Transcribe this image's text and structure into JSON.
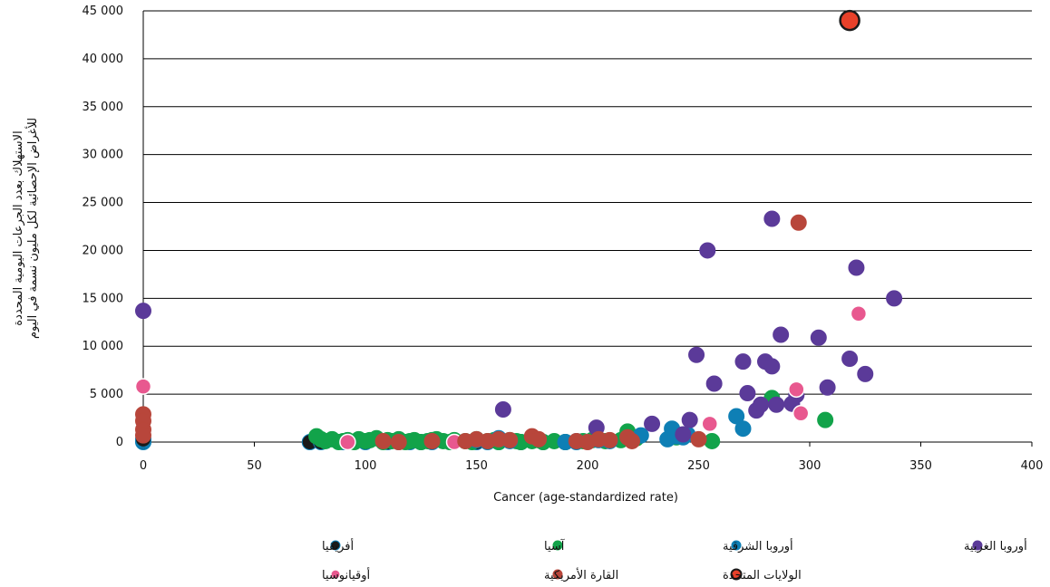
{
  "chart_data": {
    "type": "scatter",
    "xlabel": "Cancer (age-standardized rate)",
    "ylabel_lines": [
      "الاستهلاك بعدد الجرعات اليومية المحددة",
      "للأغراض الإحصائية لكل مليون نسمة في اليوم"
    ],
    "xlim": [
      0,
      400
    ],
    "ylim": [
      0,
      45000
    ],
    "x_ticks": [
      0,
      50,
      100,
      150,
      200,
      250,
      300,
      350,
      400
    ],
    "y_ticks": [
      0,
      5000,
      10000,
      15000,
      20000,
      25000,
      30000,
      35000,
      40000,
      45000
    ],
    "y_tick_labels": [
      "0",
      "5 000",
      "10 000",
      "15 000",
      "20 000",
      "25 000",
      "30 000",
      "35 000",
      "40 000",
      "45 000"
    ],
    "grid": "horizontal",
    "legend_position": "bottom",
    "series": [
      {
        "name": "أفريقيا",
        "color": "#1a1a1a",
        "edge": "#0e7fb5",
        "points": [
          [
            0,
            0
          ],
          [
            0,
            100
          ],
          [
            0,
            200
          ],
          [
            0,
            300
          ],
          [
            75,
            0
          ],
          [
            80,
            0
          ],
          [
            90,
            0
          ],
          [
            100,
            0
          ],
          [
            110,
            0
          ],
          [
            115,
            0
          ],
          [
            120,
            0
          ],
          [
            125,
            0
          ],
          [
            130,
            0
          ],
          [
            140,
            0
          ],
          [
            150,
            0
          ],
          [
            155,
            0
          ],
          [
            160,
            0
          ],
          [
            170,
            0
          ],
          [
            180,
            0
          ],
          [
            190,
            0
          ],
          [
            195,
            0
          ]
        ]
      },
      {
        "name": "آسيا",
        "color": "#12a34a",
        "edge": "#12a34a",
        "points": [
          [
            78,
            600
          ],
          [
            80,
            300
          ],
          [
            82,
            100
          ],
          [
            85,
            300
          ],
          [
            88,
            0
          ],
          [
            90,
            100
          ],
          [
            92,
            200
          ],
          [
            95,
            0
          ],
          [
            97,
            300
          ],
          [
            100,
            100
          ],
          [
            102,
            200
          ],
          [
            105,
            400
          ],
          [
            108,
            0
          ],
          [
            110,
            200
          ],
          [
            112,
            100
          ],
          [
            115,
            300
          ],
          [
            118,
            0
          ],
          [
            120,
            100
          ],
          [
            122,
            200
          ],
          [
            125,
            0
          ],
          [
            128,
            100
          ],
          [
            130,
            200
          ],
          [
            132,
            300
          ],
          [
            135,
            100
          ],
          [
            138,
            0
          ],
          [
            140,
            200
          ],
          [
            145,
            100
          ],
          [
            148,
            0
          ],
          [
            150,
            300
          ],
          [
            155,
            100
          ],
          [
            158,
            200
          ],
          [
            160,
            0
          ],
          [
            165,
            200
          ],
          [
            168,
            100
          ],
          [
            170,
            0
          ],
          [
            175,
            100
          ],
          [
            178,
            200
          ],
          [
            180,
            0
          ],
          [
            185,
            100
          ],
          [
            190,
            0
          ],
          [
            198,
            100
          ],
          [
            202,
            200
          ],
          [
            208,
            100
          ],
          [
            215,
            200
          ],
          [
            218,
            1100
          ],
          [
            222,
            400
          ],
          [
            240,
            500
          ],
          [
            256,
            100
          ],
          [
            283,
            4600
          ],
          [
            307,
            2300
          ]
        ]
      },
      {
        "name": "أوروبا الشرقية",
        "color": "#0e7fb5",
        "edge": "#0e7fb5",
        "points": [
          [
            150,
            200
          ],
          [
            160,
            400
          ],
          [
            165,
            100
          ],
          [
            190,
            0
          ],
          [
            195,
            100
          ],
          [
            205,
            200
          ],
          [
            210,
            100
          ],
          [
            224,
            700
          ],
          [
            236,
            300
          ],
          [
            238,
            1400
          ],
          [
            240,
            600
          ],
          [
            243,
            500
          ],
          [
            245,
            800
          ],
          [
            267,
            2700
          ],
          [
            270,
            1400
          ]
        ]
      },
      {
        "name": "أوروبا الغربية",
        "color": "#5b3a99",
        "edge": "#5b3a99",
        "points": [
          [
            0,
            13700
          ],
          [
            162,
            3400
          ],
          [
            204,
            1500
          ],
          [
            229,
            1900
          ],
          [
            243,
            800
          ],
          [
            246,
            2300
          ],
          [
            249,
            9100
          ],
          [
            254,
            20000
          ],
          [
            257,
            6100
          ],
          [
            270,
            8400
          ],
          [
            272,
            5100
          ],
          [
            276,
            3300
          ],
          [
            278,
            3900
          ],
          [
            280,
            8400
          ],
          [
            283,
            23300
          ],
          [
            283,
            7900
          ],
          [
            285,
            3900
          ],
          [
            287,
            11200
          ],
          [
            292,
            4000
          ],
          [
            294,
            4900
          ],
          [
            304,
            10900
          ],
          [
            308,
            5700
          ],
          [
            318,
            8700
          ],
          [
            321,
            18200
          ],
          [
            325,
            7100
          ],
          [
            338,
            15000
          ]
        ]
      },
      {
        "name": "أوقيانوسيا",
        "color": "#e8588f",
        "edge": "#ffffff",
        "points": [
          [
            0,
            5800
          ],
          [
            92,
            0
          ],
          [
            140,
            0
          ],
          [
            255,
            1900
          ],
          [
            294,
            5500
          ],
          [
            296,
            3000
          ],
          [
            322,
            13400
          ]
        ]
      },
      {
        "name": "القارة الأمريكية",
        "color": "#b8463b",
        "edge": "#b8463b",
        "points": [
          [
            0,
            2900
          ],
          [
            0,
            2200
          ],
          [
            0,
            1300
          ],
          [
            0,
            700
          ],
          [
            108,
            100
          ],
          [
            115,
            0
          ],
          [
            130,
            100
          ],
          [
            145,
            100
          ],
          [
            150,
            300
          ],
          [
            155,
            100
          ],
          [
            160,
            300
          ],
          [
            165,
            200
          ],
          [
            175,
            600
          ],
          [
            178,
            300
          ],
          [
            195,
            100
          ],
          [
            200,
            0
          ],
          [
            205,
            300
          ],
          [
            210,
            200
          ],
          [
            218,
            500
          ],
          [
            220,
            100
          ],
          [
            250,
            300
          ],
          [
            295,
            22900
          ]
        ]
      },
      {
        "name": "الولايات المتحدة",
        "color": "#e8412a",
        "edge": "#1a1a1a",
        "highlight": true,
        "points": [
          [
            318,
            44000
          ]
        ]
      }
    ]
  },
  "legend": {
    "items": [
      {
        "label": "أفريقيا",
        "color": "#1a1a1a",
        "edge": "#0e7fb5"
      },
      {
        "label": "آسيا",
        "color": "#12a34a",
        "edge": "#12a34a"
      },
      {
        "label": "أوروبا الشرقية",
        "color": "#0e7fb5",
        "edge": "#0e7fb5"
      },
      {
        "label": "أوروبا الغربية",
        "color": "#5b3a99",
        "edge": "#5b3a99"
      },
      {
        "label": "أوقيانوسيا",
        "color": "#e8588f",
        "edge": "#ffffff"
      },
      {
        "label": "القارة الأمريكية",
        "color": "#b8463b",
        "edge": "#b8463b"
      },
      {
        "label": "الولايات المتحدة",
        "color": "#e8412a",
        "edge": "#1a1a1a"
      }
    ]
  }
}
